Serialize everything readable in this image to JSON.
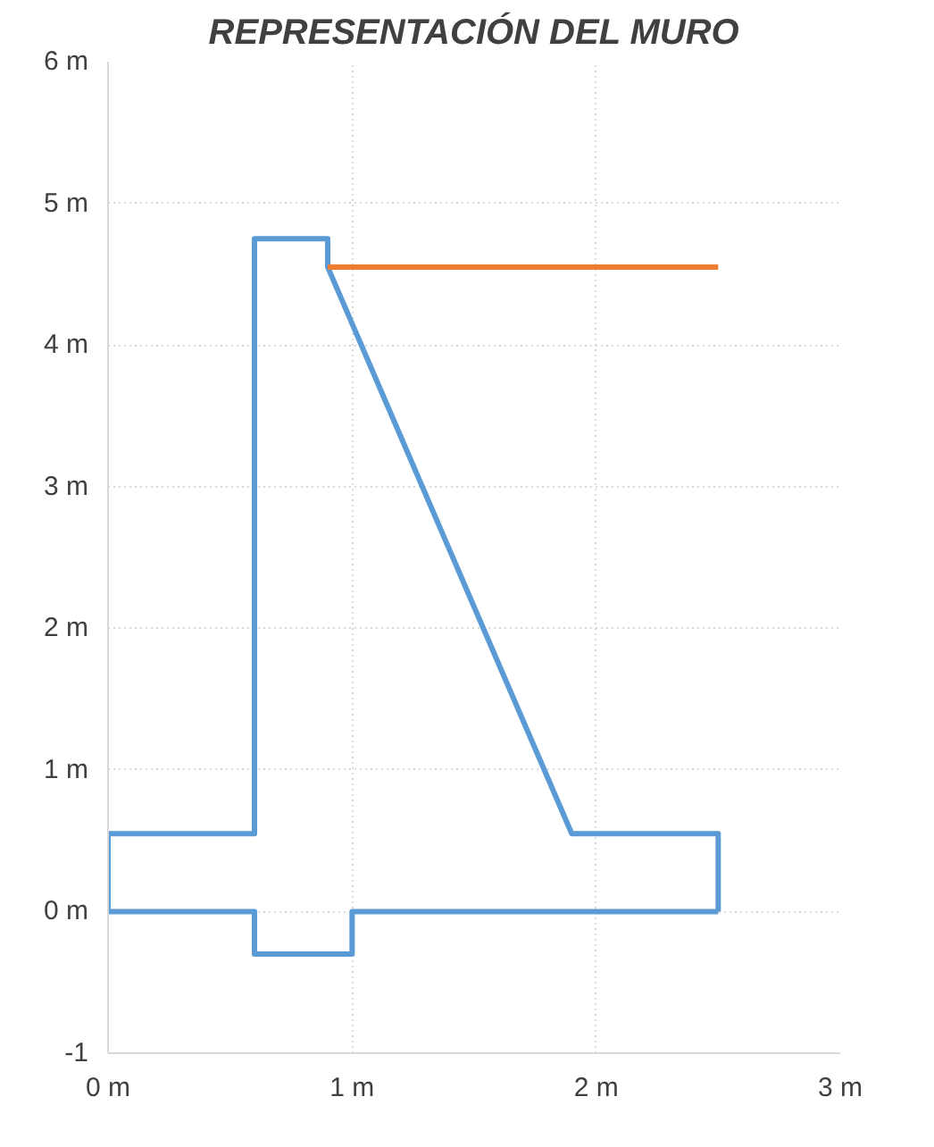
{
  "chart_data": {
    "type": "line",
    "title": "REPRESENTACIÓN DEL MURO",
    "series": [
      {
        "color": "#5b9bd5",
        "x": [
          0,
          0,
          0.6,
          0.6,
          0.9,
          0.9,
          1.9,
          2.5,
          2.5
        ],
        "values": [
          0,
          0.55,
          0.55,
          4.75,
          4.75,
          4.55,
          0.55,
          0.55,
          0
        ]
      },
      {
        "color": "#5b9bd5",
        "x": [
          2.5,
          1.0,
          1.0,
          0.6,
          0.6,
          0
        ],
        "values": [
          0,
          0,
          -0.3,
          -0.3,
          0,
          0
        ]
      },
      {
        "color": "#ed7d31",
        "x": [
          0.9,
          2.5
        ],
        "values": [
          4.55,
          4.55
        ]
      }
    ],
    "xlim": [
      0,
      3
    ],
    "ylim": [
      -1,
      6
    ],
    "xticks": [
      {
        "value": 0,
        "label": "0 m"
      },
      {
        "value": 1,
        "label": "1 m"
      },
      {
        "value": 2,
        "label": "2 m"
      },
      {
        "value": 3,
        "label": "3 m"
      }
    ],
    "yticks": [
      -1,
      {
        "value": 0,
        "label": "0 m"
      },
      {
        "value": 1,
        "label": "1 m"
      },
      {
        "value": 2,
        "label": "2 m"
      },
      {
        "value": 3,
        "label": "3 m"
      },
      {
        "value": 4,
        "label": "4 m"
      },
      {
        "value": 5,
        "label": "5 m"
      },
      {
        "value": 6,
        "label": "6 m"
      }
    ],
    "grid": true,
    "line_style": "solid",
    "marker": "none"
  }
}
